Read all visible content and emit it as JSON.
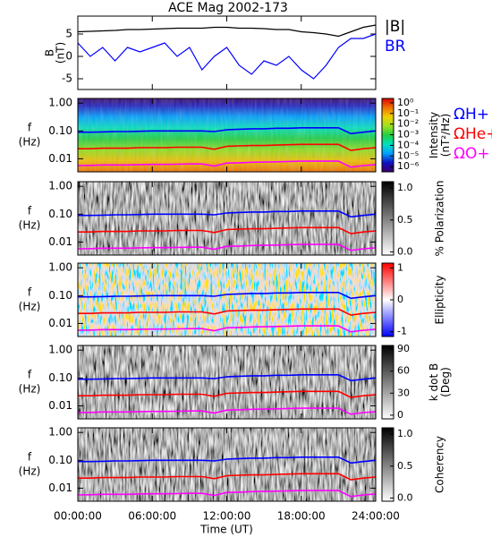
{
  "chart_data": [
    {
      "type": "line",
      "title": "ACE Mag 2002-173",
      "ylabel": [
        "B",
        "(nT)"
      ],
      "xlim": [
        0,
        24
      ],
      "ylim": [
        -7.4,
        9
      ],
      "yticks": [
        -5,
        0,
        5
      ],
      "x": [
        0,
        1,
        2,
        3,
        4,
        5,
        6,
        7,
        8,
        9,
        10,
        11,
        12,
        13,
        14,
        15,
        16,
        17,
        18,
        19,
        20,
        21,
        22,
        23,
        24
      ],
      "series": [
        {
          "name": "|B|",
          "color": "#000000",
          "values": [
            5.5,
            5.6,
            5.7,
            5.8,
            6.0,
            6.0,
            6.1,
            6.2,
            6.3,
            6.3,
            6.3,
            6.5,
            6.5,
            6.3,
            6.3,
            6.2,
            6.0,
            6.0,
            5.5,
            5.3,
            5.0,
            4.5,
            5.5,
            6.5,
            7.0
          ]
        },
        {
          "name": "BR",
          "color": "#0000ff",
          "values": [
            3,
            0,
            2,
            -1,
            2,
            1,
            2,
            3,
            0,
            2,
            -3,
            0,
            2,
            -2,
            -4,
            -1,
            -2,
            0,
            -3,
            -5,
            -2,
            2,
            4,
            4,
            5
          ]
        }
      ]
    },
    {
      "type": "spectrogram",
      "background": "rainbow",
      "ylabel": [
        "f",
        "(Hz)"
      ],
      "xlim": [
        0,
        24
      ],
      "ylim": [
        0.0034,
        1.47
      ],
      "yscale": "log",
      "yticks": [
        {
          "value": 1,
          "label": "1.00"
        },
        {
          "value": 0.1,
          "label": "0.10"
        },
        {
          "value": 0.01,
          "label": "0.01"
        }
      ],
      "colorbar": {
        "label": [
          "Intensity",
          "(nT²/Hz)"
        ],
        "lim": [
          3.2e-07,
          2.6
        ],
        "scale": "log",
        "colormap": [
          "#3a006e",
          "#1010c0",
          "#00a0ff",
          "#00e0c0",
          "#20d040",
          "#a0e020",
          "#f0d000",
          "#f07000",
          "#e00000"
        ],
        "ticks": [
          {
            "value": 1,
            "label": "10⁰"
          },
          {
            "value": 0.1,
            "label": "10⁻¹"
          },
          {
            "value": 0.01,
            "label": "10⁻²"
          },
          {
            "value": 0.001,
            "label": "10⁻³"
          },
          {
            "value": 0.0001,
            "label": "10⁻⁴"
          },
          {
            "value": 1e-05,
            "label": "10⁻⁵"
          },
          {
            "value": 1e-06,
            "label": "10⁻⁶"
          }
        ]
      },
      "x": [
        0,
        1,
        2,
        3,
        4,
        5,
        6,
        7,
        8,
        9,
        10,
        11,
        12,
        13,
        14,
        15,
        16,
        17,
        18,
        19,
        20,
        21,
        22,
        23,
        24
      ],
      "series": [
        {
          "name": "ΩH+",
          "color": "#0000ff",
          "values": [
            0.09,
            0.09,
            0.092,
            0.095,
            0.095,
            0.097,
            0.1,
            0.1,
            0.1,
            0.1,
            0.1,
            0.095,
            0.11,
            0.115,
            0.12,
            0.12,
            0.125,
            0.125,
            0.13,
            0.13,
            0.13,
            0.13,
            0.08,
            0.09,
            0.1
          ]
        },
        {
          "name": "ΩHe+",
          "color": "#ff0000",
          "values": [
            0.023,
            0.023,
            0.024,
            0.024,
            0.024,
            0.025,
            0.025,
            0.025,
            0.026,
            0.026,
            0.026,
            0.022,
            0.028,
            0.029,
            0.03,
            0.03,
            0.031,
            0.032,
            0.033,
            0.033,
            0.033,
            0.033,
            0.02,
            0.023,
            0.025
          ]
        },
        {
          "name": "ΩO+",
          "color": "#ff00ff",
          "values": [
            0.0057,
            0.0058,
            0.006,
            0.006,
            0.006,
            0.0062,
            0.0063,
            0.0063,
            0.0064,
            0.0065,
            0.0065,
            0.0055,
            0.007,
            0.0072,
            0.0075,
            0.0076,
            0.0078,
            0.008,
            0.0082,
            0.0082,
            0.0082,
            0.0082,
            0.005,
            0.0057,
            0.0062
          ]
        }
      ]
    },
    {
      "type": "spectrogram",
      "background": "gray",
      "ylabel": [
        "f",
        "(Hz)"
      ],
      "xlim": [
        0,
        24
      ],
      "ylim": [
        0.0034,
        1.47
      ],
      "yscale": "log",
      "yticks": [
        {
          "value": 1,
          "label": "1.00"
        },
        {
          "value": 0.1,
          "label": "0.10"
        },
        {
          "value": 0.01,
          "label": "0.01"
        }
      ],
      "colorbar": {
        "label": [
          "% Polarization"
        ],
        "lim": [
          -0.05,
          1.1
        ],
        "scale": "linear",
        "colormap": [
          "#ffffff",
          "#000000"
        ],
        "ticks": [
          {
            "value": 0,
            "label": "0.0"
          },
          {
            "value": 0.5,
            "label": "0.5"
          },
          {
            "value": 1,
            "label": "1.0"
          }
        ]
      }
    },
    {
      "type": "spectrogram",
      "background": "diverging",
      "ylabel": [
        "f",
        "(Hz)"
      ],
      "xlim": [
        0,
        24
      ],
      "ylim": [
        0.0034,
        1.47
      ],
      "yscale": "log",
      "yticks": [
        {
          "value": 1,
          "label": "1.00"
        },
        {
          "value": 0.1,
          "label": "0.10"
        },
        {
          "value": 0.01,
          "label": "0.01"
        }
      ],
      "colorbar": {
        "label": [
          "Ellipticity"
        ],
        "lim": [
          -1.15,
          1.15
        ],
        "scale": "linear",
        "colormap": [
          "#0000ff",
          "#ffffff",
          "#ff0000"
        ],
        "ticks": [
          -1,
          0,
          1
        ]
      }
    },
    {
      "type": "spectrogram",
      "background": "gray",
      "ylabel": [
        "f",
        "(Hz)"
      ],
      "xlim": [
        0,
        24
      ],
      "ylim": [
        0.0034,
        1.47
      ],
      "yscale": "log",
      "yticks": [
        {
          "value": 1,
          "label": "1.00"
        },
        {
          "value": 0.1,
          "label": "0.10"
        },
        {
          "value": 0.01,
          "label": "0.01"
        }
      ],
      "colorbar": {
        "label": [
          "k dot B",
          "(Deg)"
        ],
        "lim": [
          -5,
          95
        ],
        "scale": "linear",
        "colormap": [
          "#ffffff",
          "#000000"
        ],
        "ticks": [
          0,
          30,
          60,
          90
        ]
      }
    },
    {
      "type": "spectrogram",
      "background": "gray",
      "ylabel": [
        "f",
        "(Hz)"
      ],
      "xlim": [
        0,
        24
      ],
      "ylim": [
        0.0034,
        1.47
      ],
      "yscale": "log",
      "yticks": [
        {
          "value": 1,
          "label": "1.00"
        },
        {
          "value": 0.1,
          "label": "0.10"
        },
        {
          "value": 0.01,
          "label": "0.01"
        }
      ],
      "colorbar": {
        "label": [
          "Coherency"
        ],
        "lim": [
          -0.05,
          1.1
        ],
        "scale": "linear",
        "colormap": [
          "#ffffff",
          "#000000"
        ],
        "ticks": [
          {
            "value": 0,
            "label": "0.0"
          },
          {
            "value": 0.5,
            "label": "0.5"
          },
          {
            "value": 1,
            "label": "1.0"
          }
        ]
      },
      "xlabel": "Time (UT)",
      "xticks": [
        {
          "value": 0,
          "label": "00:00:00"
        },
        {
          "value": 6,
          "label": "06:00:00"
        },
        {
          "value": 12,
          "label": "12:00:00"
        },
        {
          "value": 18,
          "label": "18:00:00"
        },
        {
          "value": 24,
          "label": "24:00:00"
        }
      ]
    }
  ]
}
